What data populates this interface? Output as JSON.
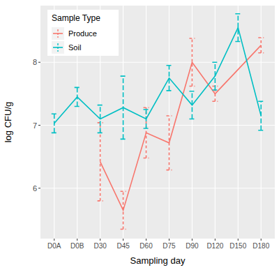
{
  "chart_data": {
    "type": "line",
    "x_label": "Sampling day",
    "y_label": "log CFU/g",
    "legend_title": "Sample Type",
    "legend": "top-left",
    "grid": true,
    "categories": [
      "D0A",
      "D0B",
      "D30",
      "D45",
      "D60",
      "D75",
      "D90",
      "D120",
      "D150",
      "D180"
    ],
    "series": [
      {
        "name": "Produce",
        "color": "#F8766D",
        "line_style": "dashed",
        "values": [
          null,
          null,
          6.42,
          5.65,
          6.88,
          6.72,
          8.0,
          7.5,
          null,
          8.27
        ],
        "errors": [
          null,
          null,
          0.62,
          0.3,
          0.4,
          0.43,
          0.38,
          0.12,
          null,
          0.12
        ]
      },
      {
        "name": "Soil",
        "color": "#00BFC4",
        "line_style": "longdash",
        "values": [
          7.03,
          7.45,
          7.1,
          7.28,
          7.1,
          7.75,
          7.32,
          7.78,
          8.55,
          7.15
        ],
        "errors": [
          0.15,
          0.15,
          0.22,
          0.5,
          0.15,
          0.2,
          0.22,
          0.22,
          0.22,
          0.23
        ]
      }
    ],
    "ylim": [
      5.2,
      8.9
    ],
    "yticks": [
      6,
      7,
      8
    ]
  }
}
